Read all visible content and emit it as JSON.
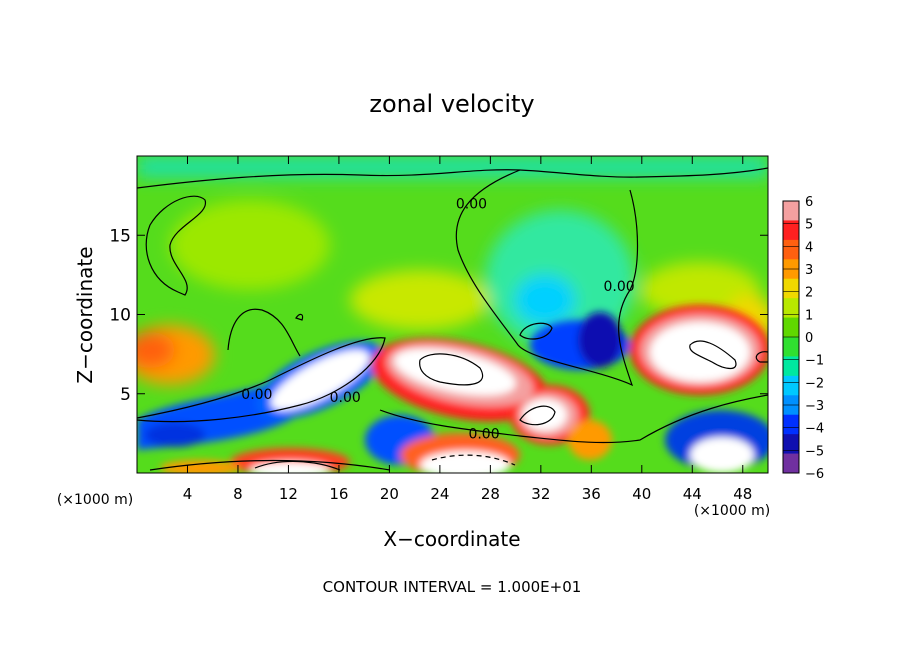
{
  "chart_data": {
    "type": "heatmap",
    "title": "zonal velocity",
    "xlabel": "X−coordinate",
    "ylabel": "Z−coordinate",
    "x_unit_label": "(×1000 m)",
    "footer": "CONTOUR INTERVAL = 1.000E+01",
    "xlim": [
      0,
      50
    ],
    "ylim": [
      0,
      20
    ],
    "x_ticks": [
      4,
      8,
      12,
      16,
      20,
      24,
      28,
      32,
      36,
      40,
      44,
      48
    ],
    "y_ticks": [
      5,
      10,
      15
    ],
    "colorbar": {
      "range": [
        -6,
        6
      ],
      "ticks": [
        "6",
        "5",
        "4",
        "3",
        "2",
        "1",
        "0",
        "−1",
        "−2",
        "−3",
        "−4",
        "−5",
        "−6"
      ],
      "colors": [
        "#f4a0a0",
        "#ff2020",
        "#ff6010",
        "#ff9a00",
        "#f0d800",
        "#b8e800",
        "#60d800",
        "#30e030",
        "#00e8a0",
        "#00c8ff",
        "#0090ff",
        "#0030ff",
        "#1010b0",
        "#7030a0"
      ],
      "saturated_color": "#ffffff"
    },
    "contour_labels": [
      {
        "text": "0.00",
        "x": 26.5,
        "y": 17.0
      },
      {
        "text": "0.00",
        "x": 38.2,
        "y": 11.8
      },
      {
        "text": "0.00",
        "x": 9.5,
        "y": 5.0
      },
      {
        "text": "0.00",
        "x": 16.5,
        "y": 4.8
      },
      {
        "text": "0.00",
        "x": 27.5,
        "y": 2.5
      }
    ]
  }
}
